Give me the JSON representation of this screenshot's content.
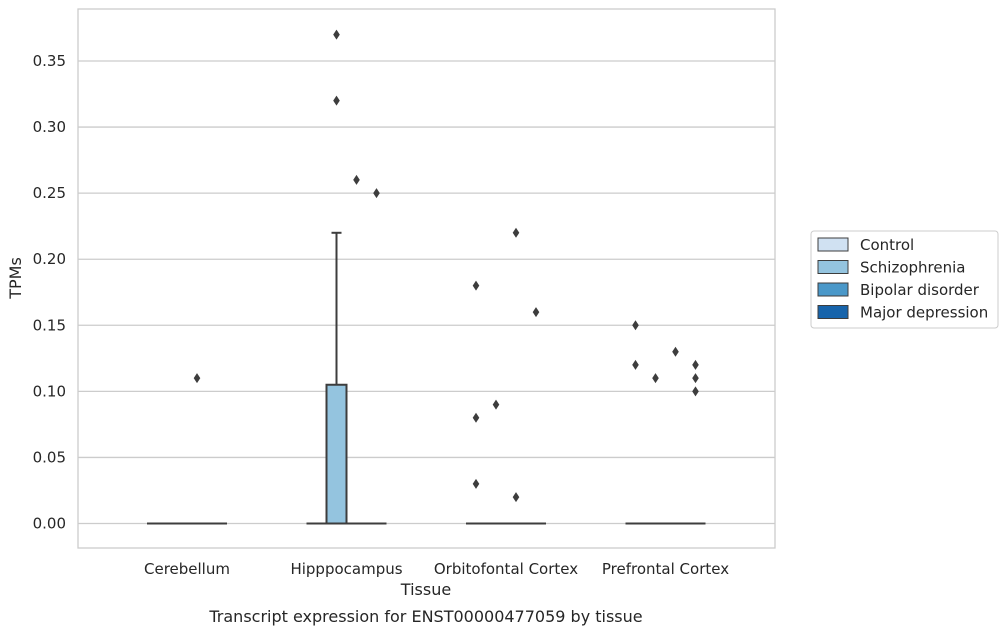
{
  "chart_data": {
    "type": "box",
    "caption": "Transcript expression for ENST00000477059 by tissue",
    "xlabel": "Tissue",
    "ylabel": "TPMs",
    "categories": [
      "Cerebellum",
      "Hipppocampus",
      "Orbitofontal Cortex",
      "Prefrontal Cortex"
    ],
    "ylim": [
      -0.018,
      0.388
    ],
    "yticks": [
      0.0,
      0.05,
      0.1,
      0.15,
      0.2,
      0.25,
      0.3,
      0.35
    ],
    "ytick_labels": [
      "0.00",
      "0.05",
      "0.10",
      "0.15",
      "0.20",
      "0.25",
      "0.30",
      "0.35"
    ],
    "grid": "horizontal",
    "legend_position": "right",
    "series": [
      {
        "name": "Control",
        "color": "#d0e1f2",
        "boxes": [
          {
            "category": "Cerebellum",
            "q1": 0,
            "median": 0,
            "q3": 0,
            "whisker_low": 0,
            "whisker_high": 0,
            "outliers": []
          },
          {
            "category": "Hipppocampus",
            "q1": 0,
            "median": 0,
            "q3": 0,
            "whisker_low": 0,
            "whisker_high": 0,
            "outliers": []
          },
          {
            "category": "Orbitofontal Cortex",
            "q1": 0,
            "median": 0,
            "q3": 0,
            "whisker_low": 0,
            "whisker_high": 0,
            "outliers": [
              0.18,
              0.08,
              0.03
            ]
          },
          {
            "category": "Prefrontal Cortex",
            "q1": 0,
            "median": 0,
            "q3": 0,
            "whisker_low": 0,
            "whisker_high": 0,
            "outliers": [
              0.15,
              0.12
            ]
          }
        ]
      },
      {
        "name": "Schizophrenia",
        "color": "#94c4df",
        "boxes": [
          {
            "category": "Cerebellum",
            "q1": 0,
            "median": 0,
            "q3": 0,
            "whisker_low": 0,
            "whisker_high": 0,
            "outliers": []
          },
          {
            "category": "Hipppocampus",
            "q1": 0,
            "median": 0,
            "q3": 0.105,
            "whisker_low": 0,
            "whisker_high": 0.22,
            "outliers": [
              0.37,
              0.32
            ]
          },
          {
            "category": "Orbitofontal Cortex",
            "q1": 0,
            "median": 0,
            "q3": 0,
            "whisker_low": 0,
            "whisker_high": 0,
            "outliers": [
              0.09
            ]
          },
          {
            "category": "Prefrontal Cortex",
            "q1": 0,
            "median": 0,
            "q3": 0,
            "whisker_low": 0,
            "whisker_high": 0,
            "outliers": [
              0.11
            ]
          }
        ]
      },
      {
        "name": "Bipolar disorder",
        "color": "#4a98c9",
        "boxes": [
          {
            "category": "Cerebellum",
            "q1": 0,
            "median": 0,
            "q3": 0,
            "whisker_low": 0,
            "whisker_high": 0,
            "outliers": [
              0.11
            ]
          },
          {
            "category": "Hipppocampus",
            "q1": 0,
            "median": 0,
            "q3": 0,
            "whisker_low": 0,
            "whisker_high": 0,
            "outliers": [
              0.26
            ]
          },
          {
            "category": "Orbitofontal Cortex",
            "q1": 0,
            "median": 0,
            "q3": 0,
            "whisker_low": 0,
            "whisker_high": 0,
            "outliers": [
              0.22,
              0.02
            ]
          },
          {
            "category": "Prefrontal Cortex",
            "q1": 0,
            "median": 0,
            "q3": 0,
            "whisker_low": 0,
            "whisker_high": 0,
            "outliers": [
              0.13
            ]
          }
        ]
      },
      {
        "name": "Major depression",
        "color": "#1764ab",
        "boxes": [
          {
            "category": "Cerebellum",
            "q1": 0,
            "median": 0,
            "q3": 0,
            "whisker_low": 0,
            "whisker_high": 0,
            "outliers": []
          },
          {
            "category": "Hipppocampus",
            "q1": 0,
            "median": 0,
            "q3": 0,
            "whisker_low": 0,
            "whisker_high": 0,
            "outliers": [
              0.25
            ]
          },
          {
            "category": "Orbitofontal Cortex",
            "q1": 0,
            "median": 0,
            "q3": 0,
            "whisker_low": 0,
            "whisker_high": 0,
            "outliers": [
              0.16
            ]
          },
          {
            "category": "Prefrontal Cortex",
            "q1": 0,
            "median": 0,
            "q3": 0,
            "whisker_low": 0,
            "whisker_high": 0,
            "outliers": [
              0.12,
              0.11,
              0.1
            ]
          }
        ]
      }
    ]
  }
}
